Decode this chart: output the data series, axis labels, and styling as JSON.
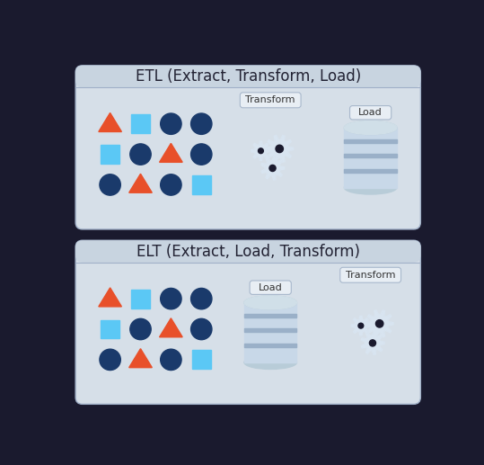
{
  "bg_color": "#1a1a2e",
  "panel_color": "#d6dfe8",
  "panel_border": "#a0b0c8",
  "panel_title_bg": "#c8d4e0",
  "title_etl": "ETL (Extract, Transform, Load)",
  "title_elt": "ELT (Extract, Load, Transform)",
  "title_fontsize": 12,
  "orange": "#e8502a",
  "blue_dark": "#1a3a6b",
  "blue_light": "#5bc8f5",
  "gear_color": "#d8e4f0",
  "gear_outline": "#b0c4d8",
  "db_body": "#c8d8e8",
  "db_stripe": "#9ab0c8",
  "db_top": "#b8ccd8",
  "db_top_light": "#d0dfe8",
  "label_box_color": "#e8eef4",
  "label_box_border": "#a8b8cc",
  "etl_grid": [
    [
      "T",
      "S",
      "C",
      "C"
    ],
    [
      "S",
      "C",
      "T",
      "C"
    ],
    [
      "C",
      "T",
      "C",
      "S"
    ]
  ]
}
